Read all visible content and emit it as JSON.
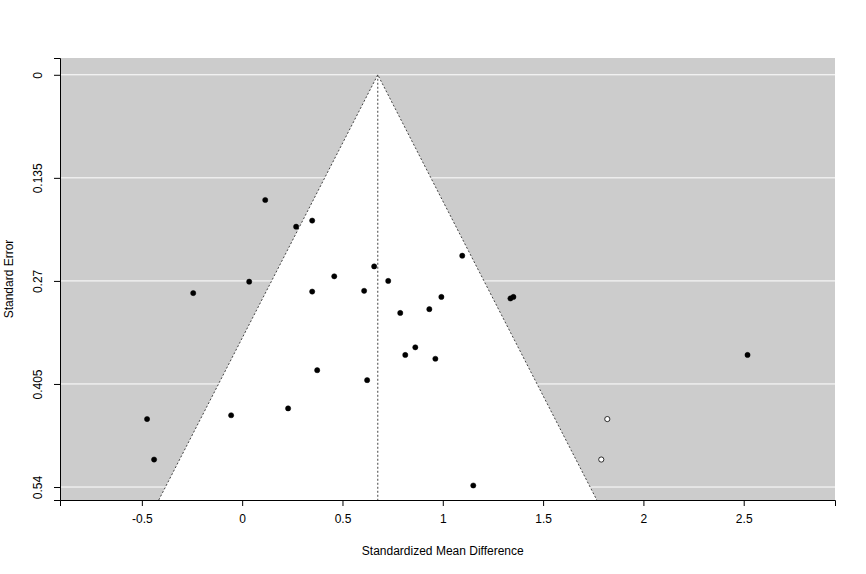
{
  "chart_data": {
    "type": "funnel",
    "x_label": "Standardized Mean Difference",
    "y_label": "Standard Error",
    "center": 0.676,
    "xlim": [
      -0.908,
      2.955
    ],
    "ylim": [
      0.557,
      -0.022
    ],
    "xticks": [
      -0.5,
      0,
      0.5,
      1,
      1.5,
      2,
      2.5
    ],
    "yticks": [
      0,
      0.135,
      0.27,
      0.405,
      0.54
    ],
    "grid": true,
    "series": [
      {
        "color": "#000000",
        "marker": "filled",
        "x": [
          0.115,
          0.269,
          0.349,
          1.097,
          0.035,
          -0.244,
          0.459,
          0.658,
          0.728,
          0.608,
          0.349,
          0.788,
          0.933,
          0.993,
          1.337,
          1.352,
          0.813,
          0.863,
          0.963,
          0.374,
          0.623,
          0.229,
          -0.055,
          -0.474,
          -0.439,
          1.152,
          2.519
        ],
        "values": [
          0.164,
          0.199,
          0.191,
          0.237,
          0.271,
          0.286,
          0.264,
          0.251,
          0.27,
          0.283,
          0.284,
          0.312,
          0.307,
          0.291,
          0.293,
          0.291,
          0.367,
          0.357,
          0.372,
          0.387,
          0.4,
          0.437,
          0.446,
          0.451,
          0.504,
          0.538,
          0.367
        ]
      },
      {
        "color": "#000000",
        "marker": "open",
        "x": [
          1.82,
          1.79
        ],
        "values": [
          0.451,
          0.504
        ]
      }
    ]
  }
}
